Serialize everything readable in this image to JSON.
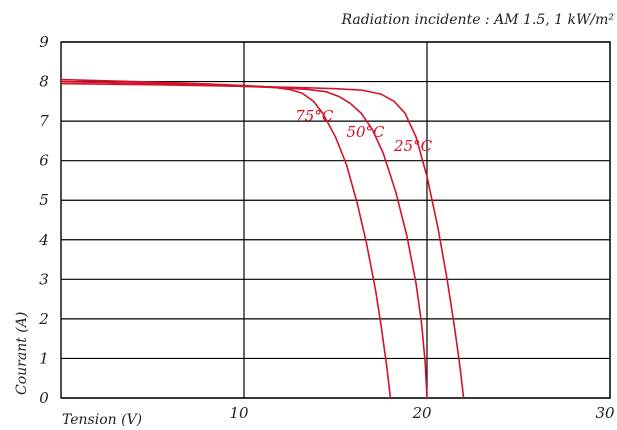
{
  "chart_data": {
    "type": "line",
    "title": "Radiation incidente : AM 1.5, 1 kW/m²",
    "xlabel": "Tension (V)",
    "ylabel": "Courant (A)",
    "xlim": [
      0,
      30
    ],
    "ylim": [
      0,
      9
    ],
    "x_ticks": [
      {
        "value": 10,
        "label": "10"
      },
      {
        "value": 20,
        "label": "20"
      },
      {
        "value": 30,
        "label": "30"
      }
    ],
    "y_ticks": [
      {
        "value": 0,
        "label": "0"
      },
      {
        "value": 1,
        "label": "1"
      },
      {
        "value": 2,
        "label": "2"
      },
      {
        "value": 3,
        "label": "3"
      },
      {
        "value": 4,
        "label": "4"
      },
      {
        "value": 5,
        "label": "5"
      },
      {
        "value": 6,
        "label": "6"
      },
      {
        "value": 7,
        "label": "7"
      },
      {
        "value": 8,
        "label": "8"
      },
      {
        "value": 9,
        "label": "9"
      }
    ],
    "grid": true,
    "line_color": "#d3122a",
    "series": [
      {
        "name": "75°C",
        "x": [
          0,
          4,
          8,
          10,
          11.5,
          12.5,
          13.2,
          13.8,
          14.3,
          15.0,
          15.6,
          16.2,
          16.7,
          17.2,
          17.5,
          17.8,
          18.0
        ],
        "y": [
          8.05,
          8.0,
          7.94,
          7.9,
          7.86,
          7.8,
          7.7,
          7.5,
          7.2,
          6.6,
          5.9,
          4.9,
          3.9,
          2.7,
          1.8,
          0.8,
          0.0
        ]
      },
      {
        "name": "50°C",
        "x": [
          0,
          5,
          10,
          12,
          13.5,
          14.5,
          15.2,
          15.8,
          16.4,
          17.0,
          17.6,
          18.3,
          18.9,
          19.4,
          19.7,
          19.9,
          20.0
        ],
        "y": [
          8.0,
          7.95,
          7.88,
          7.84,
          7.8,
          7.74,
          7.62,
          7.45,
          7.2,
          6.8,
          6.2,
          5.2,
          4.1,
          2.9,
          1.9,
          0.9,
          0.0
        ]
      },
      {
        "name": "25°C",
        "x": [
          0,
          5,
          10,
          13,
          15,
          16.5,
          17.5,
          18.2,
          18.8,
          19.4,
          20.0,
          20.6,
          21.1,
          21.5,
          21.8,
          22.0
        ],
        "y": [
          7.95,
          7.92,
          7.88,
          7.85,
          7.82,
          7.78,
          7.68,
          7.5,
          7.2,
          6.6,
          5.6,
          4.3,
          3.0,
          1.8,
          0.8,
          0.0
        ]
      }
    ]
  }
}
